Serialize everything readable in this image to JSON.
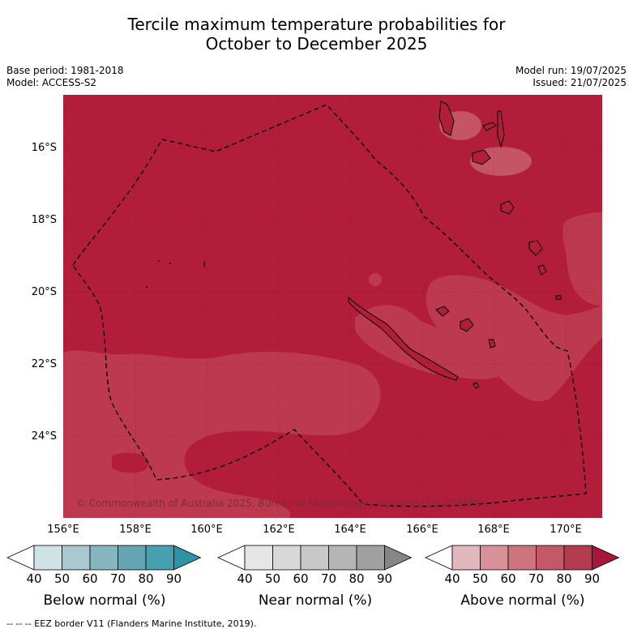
{
  "title_line1": "Tercile maximum temperature probabilities for",
  "title_line2": "October to December 2025",
  "base_period": "Base period: 1981-2018",
  "model": "Model: ACCESS-S2",
  "model_run": "Model run: 19/07/2025",
  "issued": "Issued: 21/07/2025",
  "lat_labels": [
    "16°S",
    "18°S",
    "20°S",
    "22°S",
    "24°S"
  ],
  "lon_labels": [
    "156°E",
    "158°E",
    "160°E",
    "162°E",
    "164°E",
    "166°E",
    "168°E",
    "170°E"
  ],
  "copyright": "© Commonwealth of Australia 2025, Bureau of Meteorology, supported by COSPPac",
  "colorbars": [
    {
      "title": "Below normal (%)",
      "ticks": [
        "40",
        "50",
        "60",
        "70",
        "80",
        "90"
      ],
      "colors": [
        "#ffffff",
        "#cfe3e7",
        "#a7c9cf",
        "#86b6c0",
        "#65a4b1",
        "#46a0b0",
        "#2f93a6"
      ]
    },
    {
      "title": "Near normal (%)",
      "ticks": [
        "40",
        "50",
        "60",
        "70",
        "80",
        "90"
      ],
      "colors": [
        "#ffffff",
        "#e6e6e6",
        "#d8d8d8",
        "#c8c8c8",
        "#b5b5b5",
        "#a0a0a0",
        "#868686"
      ]
    },
    {
      "title": "Above normal (%)",
      "ticks": [
        "40",
        "50",
        "60",
        "70",
        "80",
        "90"
      ],
      "colors": [
        "#ffffff",
        "#e2b7be",
        "#d89199",
        "#cd747e",
        "#c35868",
        "#b53c50",
        "#a8173a"
      ]
    }
  ],
  "footnote": "--  --  -- EEZ border V11 (Flanders Marine Institute, 2019).",
  "colors": {
    "above_80": "#b21e3a",
    "above_70": "#bd3a4e",
    "above_60": "#c55565"
  }
}
